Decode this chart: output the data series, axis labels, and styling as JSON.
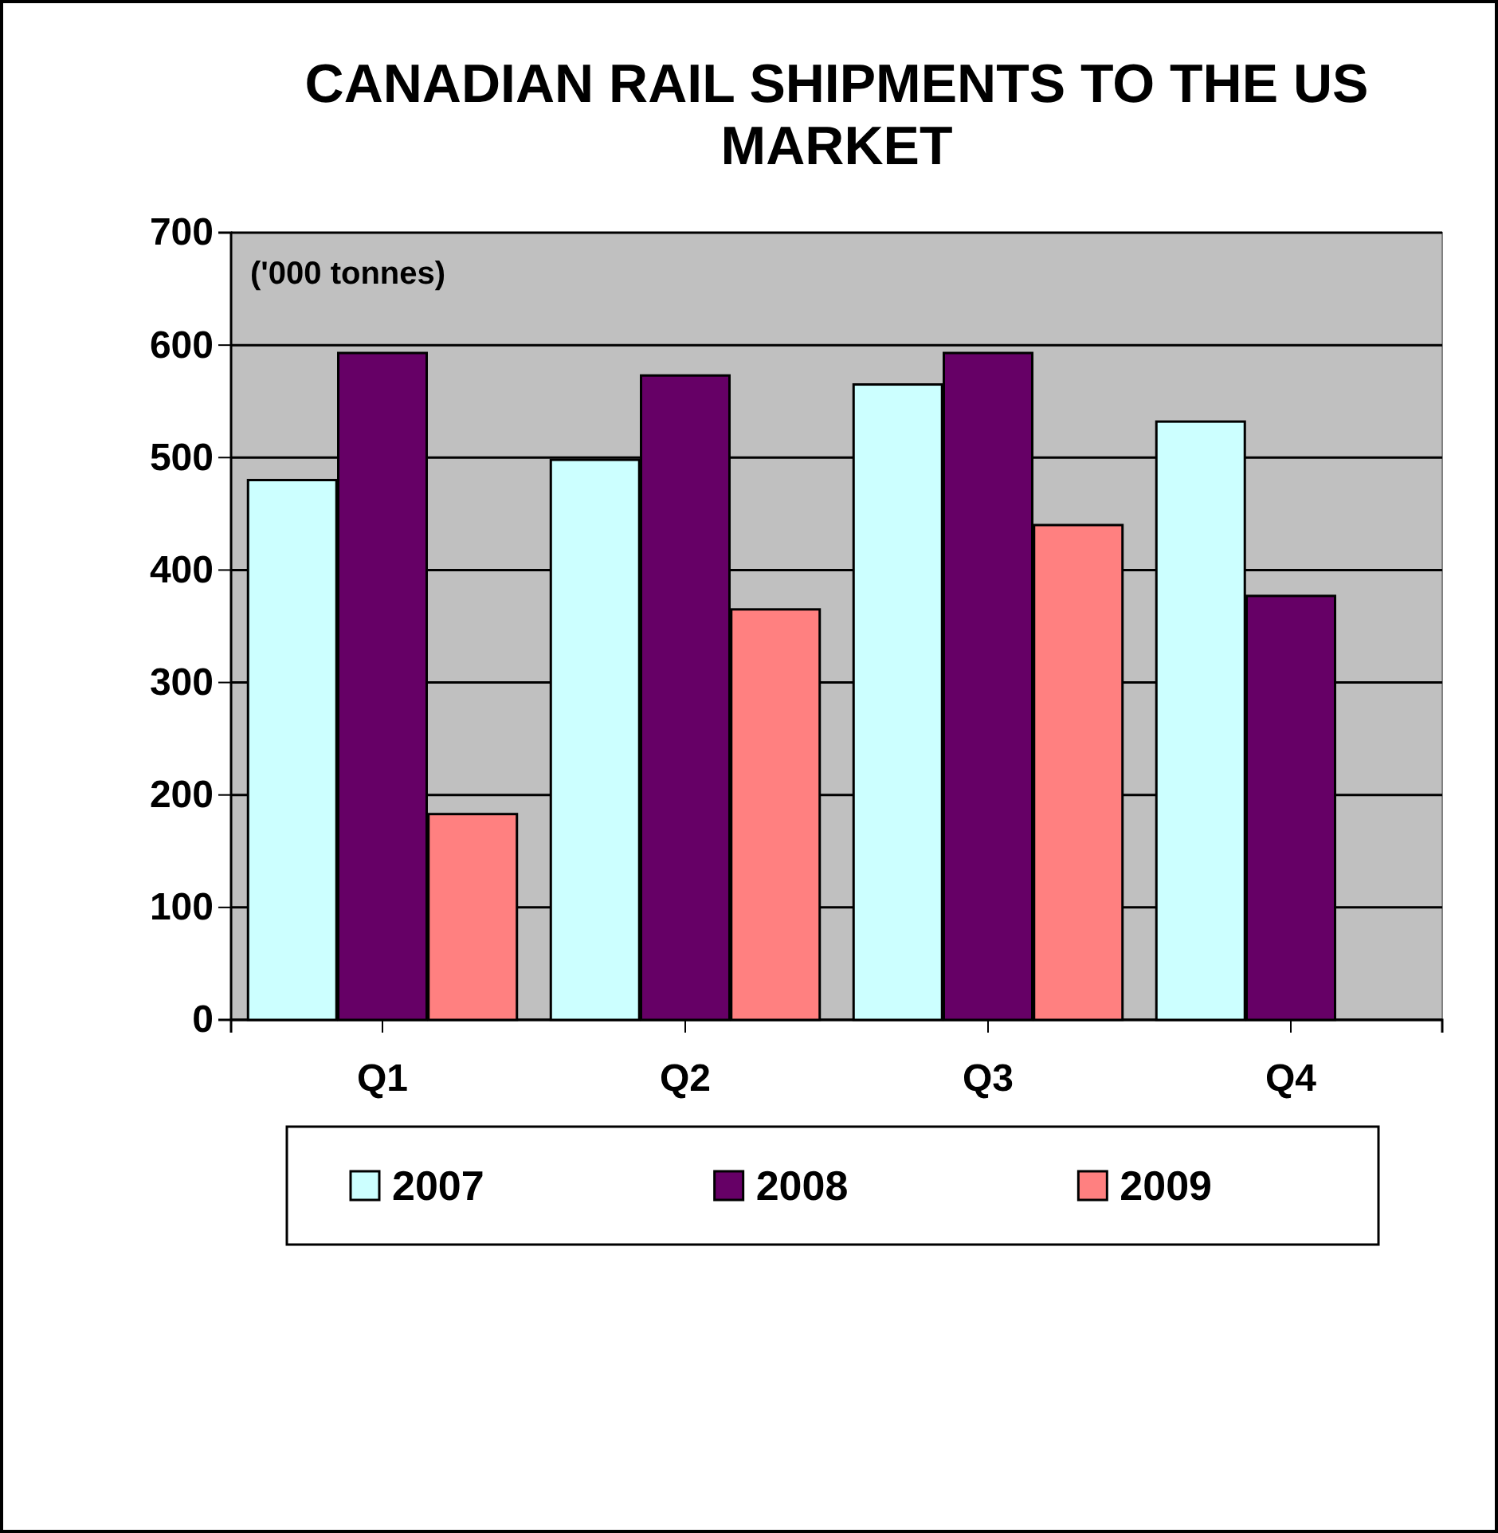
{
  "chart_data": {
    "type": "bar",
    "title": "CANADIAN RAIL SHIPMENTS TO THE US MARKET",
    "categories": [
      "Q1",
      "Q2",
      "Q3",
      "Q4"
    ],
    "series": [
      {
        "name": "2007",
        "color": "#ccffff",
        "values": [
          480,
          498,
          565,
          532
        ]
      },
      {
        "name": "2008",
        "color": "#660066",
        "values": [
          593,
          573,
          593,
          377
        ]
      },
      {
        "name": "2009",
        "color": "#ff8080",
        "values": [
          183,
          365,
          440,
          null
        ]
      }
    ],
    "ylim": [
      0,
      700
    ],
    "yticks": [
      0,
      100,
      200,
      300,
      400,
      500,
      600,
      700
    ],
    "grid": "y",
    "legend": "bottom",
    "annotations": [
      "('000 tonnes)"
    ]
  }
}
